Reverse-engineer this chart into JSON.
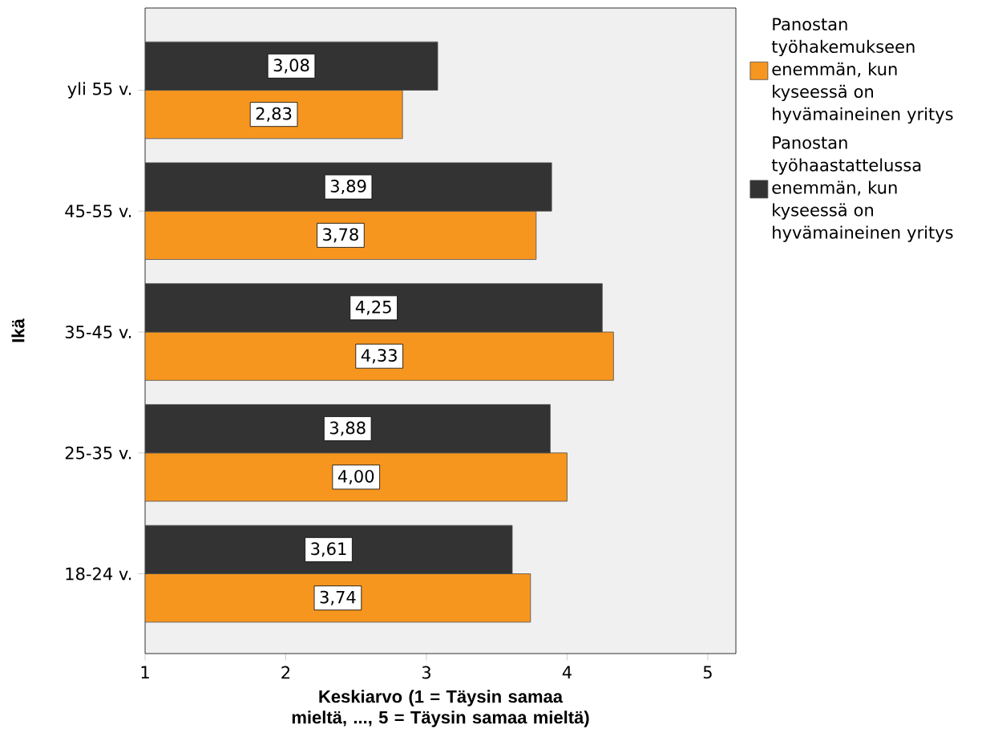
{
  "chart_data": {
    "type": "bar",
    "orientation": "horizontal",
    "ylabel": "Ikä",
    "xlabel": "Keskiarvo (1 = Täysin samaa mieltä, ..., 5 = Täysin samaa mieltä)",
    "categories": [
      "yli 55 v.",
      "45-55 v.",
      "35-45 v.",
      "25-35 v.",
      "18-24 v."
    ],
    "series": [
      {
        "name": "Panostan työhakemukseen enemmän, kun kyseessä on hyvämaineinen yritys",
        "color": "#f7961f",
        "values": [
          2.83,
          3.78,
          4.33,
          4.0,
          3.74
        ],
        "value_labels": [
          "2,83",
          "3,78",
          "4,33",
          "4,00",
          "3,74"
        ]
      },
      {
        "name": "Panostan työhaastattelussa enemmän, kun kyseessä on hyvämaineinen yritys",
        "color": "#333333",
        "values": [
          3.08,
          3.89,
          4.25,
          3.88,
          3.61
        ],
        "value_labels": [
          "3,08",
          "3,89",
          "4,25",
          "3,88",
          "3,61"
        ]
      }
    ],
    "xlim": [
      1,
      5.2
    ],
    "xticks": [
      1,
      2,
      3,
      4,
      5
    ],
    "legend": "top right"
  }
}
